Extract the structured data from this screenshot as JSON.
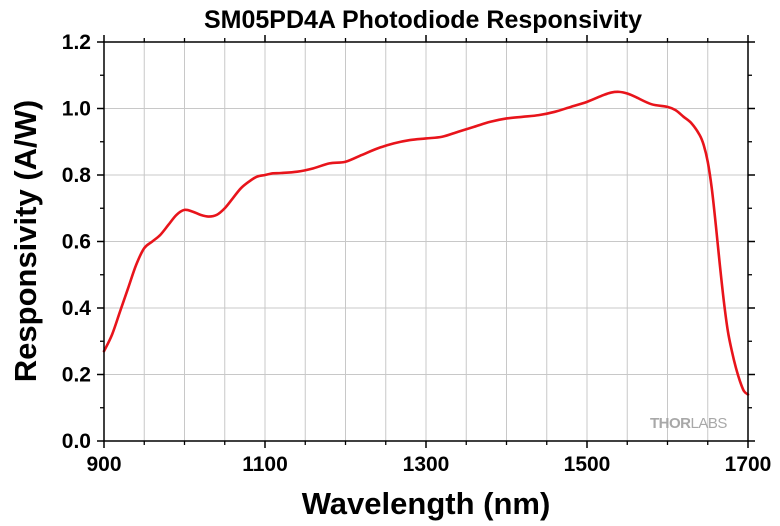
{
  "chart_data": {
    "type": "line",
    "title": "SM05PD4A Photodiode Responsivity",
    "xlabel": "Wavelength (nm)",
    "ylabel": "Responsivity (A/W)",
    "xlim": [
      900,
      1700
    ],
    "ylim": [
      0.0,
      1.2
    ],
    "x_ticks": [
      900,
      1100,
      1300,
      1500,
      1700
    ],
    "x_tick_labels": [
      "900",
      "1100",
      "1300",
      "1500",
      "1700"
    ],
    "y_ticks": [
      0.0,
      0.2,
      0.4,
      0.6,
      0.8,
      1.0,
      1.2
    ],
    "y_tick_labels": [
      "0.0",
      "0.2",
      "0.4",
      "0.6",
      "0.8",
      "1.0",
      "1.2"
    ],
    "x_minor_step": 50,
    "y_minor_step": 0.1,
    "grid": true,
    "line_color": "#e8141b",
    "watermark": {
      "text_a": "THOR",
      "text_b": "LABS"
    },
    "series": [
      {
        "x": [
          900,
          910,
          920,
          930,
          940,
          950,
          960,
          970,
          980,
          990,
          1000,
          1010,
          1020,
          1030,
          1040,
          1050,
          1060,
          1070,
          1080,
          1090,
          1100,
          1110,
          1120,
          1140,
          1160,
          1180,
          1200,
          1220,
          1240,
          1260,
          1280,
          1300,
          1320,
          1340,
          1360,
          1380,
          1400,
          1420,
          1440,
          1460,
          1480,
          1500,
          1520,
          1530,
          1540,
          1550,
          1560,
          1580,
          1600,
          1610,
          1620,
          1630,
          1640,
          1645,
          1650,
          1655,
          1660,
          1665,
          1670,
          1675,
          1680,
          1685,
          1690,
          1695,
          1700
        ],
        "y": [
          0.27,
          0.32,
          0.39,
          0.46,
          0.53,
          0.58,
          0.6,
          0.62,
          0.65,
          0.68,
          0.695,
          0.69,
          0.68,
          0.675,
          0.68,
          0.7,
          0.73,
          0.76,
          0.78,
          0.795,
          0.8,
          0.805,
          0.806,
          0.81,
          0.82,
          0.835,
          0.84,
          0.86,
          0.88,
          0.895,
          0.905,
          0.91,
          0.915,
          0.93,
          0.945,
          0.96,
          0.97,
          0.975,
          0.98,
          0.99,
          1.005,
          1.02,
          1.04,
          1.048,
          1.05,
          1.045,
          1.035,
          1.013,
          1.005,
          0.995,
          0.975,
          0.955,
          0.92,
          0.89,
          0.84,
          0.76,
          0.65,
          0.53,
          0.42,
          0.33,
          0.27,
          0.22,
          0.18,
          0.15,
          0.14
        ]
      }
    ]
  }
}
